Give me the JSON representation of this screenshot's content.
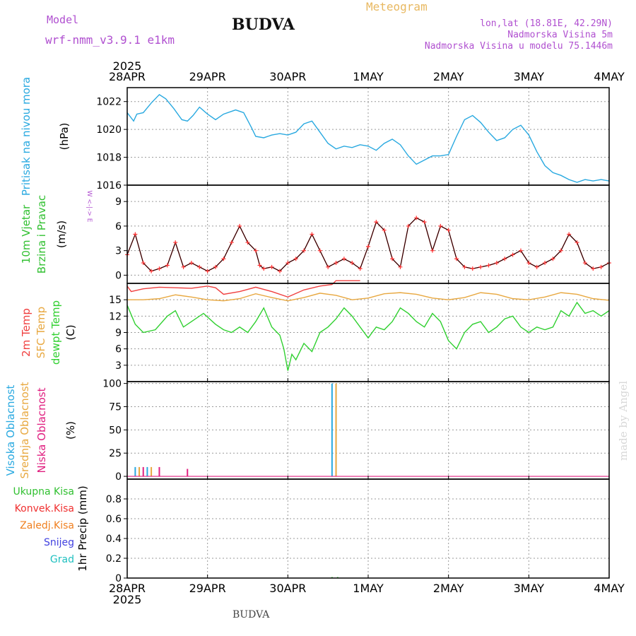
{
  "header": {
    "model_label": "Model",
    "model_name": "wrf-nmm_v3.9.1  e1km",
    "title": "BUDVA",
    "meteogram": "Meteogram",
    "coords": "lon,lat (18.81E, 42.29N)",
    "altitude": "Nadmorska Visina 5m",
    "model_altitude": "Nadmorska Visina u modelu 75.1446m",
    "year_top": "2025",
    "year_bottom": "2025"
  },
  "footer": {
    "location": "BUDVA",
    "credit": "made by Angel"
  },
  "colors": {
    "pressure": "#29a9e0",
    "wind_speed": "#ff3030",
    "wind_black": "#000000",
    "t2m": "#f04040",
    "tsfc": "#e8a840",
    "dewpt": "#30d030",
    "cloud_high": "#29a9e0",
    "cloud_mid": "#e8a840",
    "cloud_low": "#e02080",
    "grid": "#9a9a9a"
  },
  "chart_data": [
    {
      "type": "line",
      "panel": "pressure",
      "ylabel": [
        "Pritisak na nivou mora",
        "(hPa)"
      ],
      "x_labels": [
        "28APR",
        "29APR",
        "30APR",
        "1MAY",
        "2MAY",
        "3MAY",
        "4MAY"
      ],
      "ylim": [
        1016,
        1023
      ],
      "yticks": [
        1016,
        1018,
        1020,
        1022
      ],
      "series": [
        {
          "x": [
            0,
            0.08,
            0.12,
            0.2,
            0.3,
            0.4,
            0.48,
            0.58,
            0.68,
            0.75,
            0.82,
            0.9,
            1.0,
            1.1,
            1.2,
            1.35,
            1.45,
            1.55,
            1.6,
            1.7,
            1.8,
            1.9,
            2.0,
            2.1,
            2.2,
            2.3,
            2.4,
            2.5,
            2.6,
            2.7,
            2.8,
            2.9,
            3.0,
            3.1,
            3.2,
            3.3,
            3.4,
            3.5,
            3.6,
            3.7,
            3.8,
            3.9,
            4.0,
            4.1,
            4.2,
            4.3,
            4.4,
            4.5,
            4.55,
            4.6,
            4.7,
            4.8,
            4.9,
            5.0,
            5.1,
            5.2,
            5.3,
            5.4,
            5.5,
            5.6,
            5.7,
            5.8,
            5.9,
            6.0
          ],
          "values": [
            1021.2,
            1020.6,
            1021.1,
            1021.2,
            1021.9,
            1022.5,
            1022.2,
            1021.5,
            1020.7,
            1020.6,
            1021.0,
            1021.6,
            1021.1,
            1020.7,
            1021.1,
            1021.4,
            1021.2,
            1020.1,
            1019.5,
            1019.4,
            1019.6,
            1019.7,
            1019.6,
            1019.8,
            1020.4,
            1020.6,
            1019.8,
            1019.0,
            1018.6,
            1018.8,
            1018.7,
            1018.9,
            1018.8,
            1018.5,
            1019.0,
            1019.3,
            1018.9,
            1018.1,
            1017.5,
            1017.8,
            1018.1,
            1018.1,
            1018.2,
            1019.5,
            1020.7,
            1021.0,
            1020.5,
            1019.8,
            1019.5,
            1019.2,
            1019.4,
            1020.0,
            1020.3,
            1019.6,
            1018.4,
            1017.4,
            1016.9,
            1016.7,
            1016.4,
            1016.2,
            1016.4,
            1016.3,
            1016.4,
            1016.3
          ]
        }
      ]
    },
    {
      "type": "line",
      "panel": "wind",
      "ylabel": [
        "10m Vjetar",
        "Brzina i Pravac",
        "(m/s)"
      ],
      "compass": "W <-|-> E",
      "ylim": [
        -1,
        11
      ],
      "yticks": [
        0,
        3,
        6,
        9
      ],
      "series": [
        {
          "name": "speed",
          "x": [
            0,
            0.1,
            0.2,
            0.3,
            0.4,
            0.5,
            0.6,
            0.7,
            0.8,
            0.9,
            1.0,
            1.1,
            1.2,
            1.3,
            1.4,
            1.5,
            1.6,
            1.65,
            1.7,
            1.8,
            1.9,
            2.0,
            2.1,
            2.2,
            2.3,
            2.4,
            2.5,
            2.6,
            2.7,
            2.8,
            2.9,
            3.0,
            3.1,
            3.2,
            3.3,
            3.4,
            3.5,
            3.6,
            3.7,
            3.8,
            3.9,
            4.0,
            4.1,
            4.2,
            4.3,
            4.4,
            4.5,
            4.6,
            4.7,
            4.8,
            4.9,
            5.0,
            5.1,
            5.2,
            5.3,
            5.4,
            5.5,
            5.6,
            5.7,
            5.8,
            5.9,
            6.0
          ],
          "values": [
            2.5,
            5.0,
            1.5,
            0.5,
            0.8,
            1.2,
            4.0,
            1.0,
            1.5,
            1.0,
            0.5,
            1.0,
            2.0,
            4.0,
            6.0,
            4.0,
            3.0,
            1.2,
            0.8,
            1.0,
            0.5,
            1.5,
            2.0,
            3.0,
            5.0,
            3.0,
            1.0,
            1.5,
            2.0,
            1.5,
            0.8,
            3.5,
            6.5,
            5.5,
            2.0,
            1.0,
            6.0,
            7.0,
            6.5,
            3.0,
            6.0,
            5.5,
            2.0,
            1.0,
            0.8,
            1.0,
            1.2,
            1.5,
            2.0,
            2.5,
            3.0,
            1.5,
            1.0,
            1.5,
            2.0,
            3.0,
            5.0,
            4.0,
            1.5,
            0.8,
            1.0,
            1.5
          ]
        }
      ]
    },
    {
      "type": "line",
      "panel": "temperature",
      "ylabel": [
        "2m Temp",
        "SFC Temp",
        "dewpt Temp",
        "(C)"
      ],
      "ylim": [
        0,
        18
      ],
      "yticks": [
        3,
        6,
        9,
        12,
        15
      ],
      "series": [
        {
          "name": "2m Temp",
          "x": [
            0,
            0.05,
            0.2,
            0.4,
            0.6,
            0.8,
            1.0,
            1.1,
            1.2,
            1.4,
            1.6,
            1.8,
            2.0,
            2.2,
            2.4,
            2.55,
            2.6,
            2.9
          ],
          "values": [
            17.5,
            16.5,
            17.0,
            17.3,
            17.2,
            17.1,
            17.5,
            17.2,
            16.0,
            16.5,
            17.3,
            16.5,
            15.5,
            16.8,
            17.5,
            17.8,
            18.5,
            18.5
          ]
        },
        {
          "name": "SFC Temp",
          "x": [
            0,
            0.2,
            0.4,
            0.6,
            0.8,
            1.0,
            1.2,
            1.4,
            1.6,
            1.8,
            2.0,
            2.2,
            2.4,
            2.6,
            2.8,
            3.0,
            3.2,
            3.4,
            3.6,
            3.8,
            4.0,
            4.2,
            4.4,
            4.6,
            4.8,
            5.0,
            5.2,
            5.4,
            5.6,
            5.8,
            6.0
          ],
          "values": [
            15.0,
            15.0,
            15.2,
            15.9,
            15.5,
            15.0,
            14.8,
            15.2,
            16.1,
            15.4,
            14.8,
            15.4,
            16.2,
            15.8,
            15.0,
            15.3,
            16.1,
            16.3,
            16.0,
            15.3,
            15.0,
            15.4,
            16.3,
            16.0,
            15.2,
            15.0,
            15.5,
            16.3,
            16.0,
            15.2,
            14.9
          ]
        },
        {
          "name": "dewpt Temp",
          "x": [
            0,
            0.1,
            0.2,
            0.35,
            0.5,
            0.6,
            0.7,
            0.8,
            0.95,
            1.1,
            1.2,
            1.3,
            1.4,
            1.5,
            1.6,
            1.7,
            1.8,
            1.9,
            1.95,
            2.0,
            2.05,
            2.1,
            2.2,
            2.3,
            2.4,
            2.5,
            2.6,
            2.7,
            2.8,
            2.9,
            3.0,
            3.1,
            3.2,
            3.3,
            3.4,
            3.5,
            3.6,
            3.7,
            3.8,
            3.9,
            4.0,
            4.1,
            4.2,
            4.3,
            4.4,
            4.5,
            4.6,
            4.7,
            4.8,
            4.9,
            5.0,
            5.1,
            5.2,
            5.3,
            5.4,
            5.5,
            5.6,
            5.7,
            5.8,
            5.9,
            6.0
          ],
          "values": [
            14.0,
            10.5,
            9.0,
            9.5,
            12.0,
            13.0,
            10.0,
            11.0,
            12.5,
            10.5,
            9.5,
            9.0,
            10.0,
            9.0,
            11.0,
            13.5,
            10.0,
            8.5,
            6.0,
            2.0,
            5.0,
            4.0,
            7.0,
            5.5,
            9.0,
            10.0,
            11.5,
            13.5,
            12.0,
            10.0,
            8.0,
            10.0,
            9.5,
            11.0,
            13.5,
            12.5,
            11.0,
            10.0,
            12.5,
            11.0,
            7.5,
            6.0,
            9.0,
            10.5,
            11.0,
            9.0,
            10.0,
            11.5,
            12.0,
            10.0,
            9.0,
            10.0,
            9.5,
            10.0,
            13.0,
            12.0,
            14.5,
            12.5,
            13.0,
            12.0,
            13.0
          ]
        }
      ]
    },
    {
      "type": "bar",
      "panel": "cloud",
      "ylabel": [
        "Visoka Oblacnost",
        "Srednja Oblacnost",
        "Niska Oblacnost",
        "(%)"
      ],
      "ylim": [
        -3,
        102
      ],
      "yticks": [
        0,
        25,
        50,
        75,
        100
      ],
      "series": [
        {
          "name": "Visoka Oblacnost",
          "x": [
            0.1,
            0.25,
            2.55
          ],
          "values": [
            10,
            10,
            100
          ]
        },
        {
          "name": "Srednja Oblacnost",
          "x": [
            0.15,
            0.3,
            2.6
          ],
          "values": [
            10,
            10,
            100
          ]
        },
        {
          "name": "Niska Oblacnost",
          "x": [
            0.2,
            0.4,
            0.75
          ],
          "values": [
            10,
            10,
            8
          ]
        }
      ]
    },
    {
      "type": "bar",
      "panel": "precip",
      "ylabel": [
        "1hr Precip (mm)"
      ],
      "legend": [
        "Ukupna Kisa",
        "Konvek.Kisa",
        "Zaledj.Kisa",
        "Snijeg",
        "Grad"
      ],
      "legend_colors": [
        "#30c030",
        "#f03030",
        "#f08020",
        "#4040e0",
        "#20c0c0"
      ],
      "ylim": [
        0,
        1.0
      ],
      "yticks": [
        0,
        0.2,
        0.4,
        0.6,
        0.8
      ],
      "series": [
        {
          "name": "Ukupna Kisa",
          "x": [
            2.55,
            2.62
          ],
          "values": [
            0.01,
            0.01
          ]
        }
      ]
    }
  ]
}
